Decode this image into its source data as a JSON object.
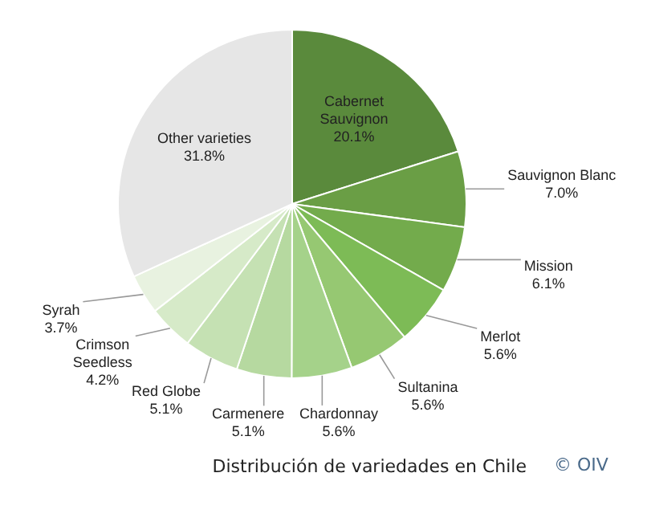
{
  "chart_data": {
    "type": "pie",
    "categories": [
      "Cabernet Sauvignon",
      "Sauvignon Blanc",
      "Mission",
      "Merlot",
      "Sultanina",
      "Chardonnay",
      "Carmenere",
      "Red Globe",
      "Crimson Seedless",
      "Syrah",
      "Other varieties"
    ],
    "values": [
      20.1,
      7.0,
      6.1,
      5.6,
      5.6,
      5.6,
      5.1,
      5.1,
      4.2,
      3.7,
      31.8
    ],
    "value_labels": [
      "20.1%",
      "7.0%",
      "6.1%",
      "5.6%",
      "5.6%",
      "5.6%",
      "5.1%",
      "5.1%",
      "4.2%",
      "3.7%",
      "31.8%"
    ],
    "colors": [
      "#5a8a3c",
      "#6a9e45",
      "#73ab4c",
      "#7dbb56",
      "#96c872",
      "#a5d28a",
      "#b6d9a0",
      "#c5e1b3",
      "#d6eac8",
      "#e8f2e0",
      "#e6e6e6"
    ],
    "annotations": [
      "Distribución de variedades en Chile",
      "© OIV"
    ],
    "legend": false
  }
}
